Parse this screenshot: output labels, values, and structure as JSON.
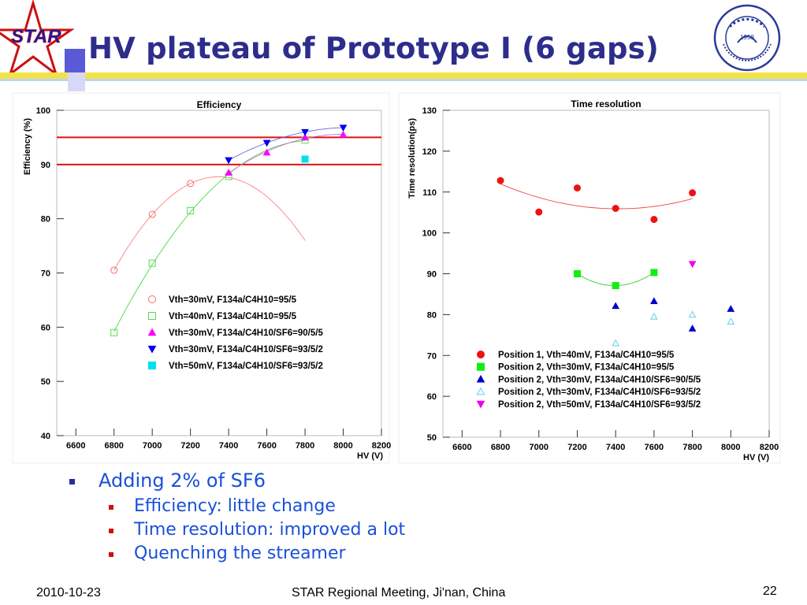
{
  "slide": {
    "title": "HV plateau of Prototype I (6 gaps)",
    "logo_text": "STAR",
    "seal_text": "1958",
    "bullets": [
      {
        "text": "Adding 2% of SF6",
        "sub": [
          {
            "text": "Efficiency: little change"
          },
          {
            "text": "Time resolution: improved a lot"
          },
          {
            "text": "Quenching the streamer"
          }
        ]
      }
    ],
    "footer": {
      "date": "2010-10-23",
      "center": "STAR Regional Meeting, Ji'nan, China",
      "page": "22"
    }
  },
  "chart_data": [
    {
      "type": "scatter",
      "title": "Efficiency",
      "xlabel": "HV (V)",
      "ylabel": "Efficiency (%)",
      "xlim": [
        6500,
        8200
      ],
      "ylim": [
        40,
        100
      ],
      "xticks": [
        6600,
        6800,
        7000,
        7200,
        7400,
        7600,
        7800,
        8000,
        8200
      ],
      "yticks": [
        40,
        50,
        60,
        70,
        80,
        90,
        100
      ],
      "grid": false,
      "legend": "inside-lower-center",
      "reference_lines": [
        95,
        90
      ],
      "series": [
        {
          "name": "Vth=30mV, F134a/C4H10=95/5",
          "marker": "circle-open",
          "color": "#ff6666",
          "x": [
            6800,
            7000,
            7200
          ],
          "y": [
            70.5,
            80.8,
            86.5
          ]
        },
        {
          "name": "Vth=40mV, F134a/C4H10=95/5",
          "marker": "square-open",
          "color": "#55dd55",
          "x": [
            6800,
            7000,
            7200,
            7400,
            7800
          ],
          "y": [
            59,
            71.8,
            81.5,
            87.8,
            94.5
          ]
        },
        {
          "name": "Vth=30mV, F134a/C4H10/SF6=90/5/5",
          "marker": "triangle-up",
          "color": "#ff00ff",
          "x": [
            7400,
            7600,
            7800,
            8000
          ],
          "y": [
            88.5,
            92.2,
            95,
            95.5
          ]
        },
        {
          "name": "Vth=30mV, F134a/C4H10/SF6=93/5/2",
          "marker": "triangle-down",
          "color": "#0000ee",
          "x": [
            7400,
            7600,
            7800,
            8000
          ],
          "y": [
            90.8,
            94,
            96,
            96.8
          ]
        },
        {
          "name": "Vth=50mV, F134a/C4H10/SF6=93/5/2",
          "marker": "square",
          "color": "#00e0f0",
          "x": [
            7800
          ],
          "y": [
            91
          ]
        }
      ]
    },
    {
      "type": "scatter",
      "title": "Time resolution",
      "xlabel": "HV (V)",
      "ylabel": "Time resolution(ps)",
      "xlim": [
        6500,
        8200
      ],
      "ylim": [
        50,
        130
      ],
      "xticks": [
        6600,
        6800,
        7000,
        7200,
        7400,
        7600,
        7800,
        8000,
        8200
      ],
      "yticks": [
        50,
        60,
        70,
        80,
        90,
        100,
        110,
        120,
        130
      ],
      "grid": false,
      "legend": "inside-lower-center",
      "series": [
        {
          "name": "Position 1, Vth=40mV, F134a/C4H10=95/5",
          "marker": "circle",
          "color": "#ee1111",
          "x": [
            6800,
            7000,
            7200,
            7400,
            7600,
            7800
          ],
          "y": [
            112.8,
            105.1,
            111,
            106,
            103.3,
            109.8
          ]
        },
        {
          "name": "Position 2, Vth=30mV, F134a/C4H10=95/5",
          "marker": "square",
          "color": "#11ee11",
          "x": [
            7200,
            7400,
            7600
          ],
          "y": [
            90,
            87.1,
            90.3
          ]
        },
        {
          "name": "Position 2, Vth=30mV, F134a/C4H10/SF6=90/5/5",
          "marker": "triangle-up",
          "color": "#0000cc",
          "x": [
            7400,
            7600,
            7800,
            8000
          ],
          "y": [
            82.1,
            83.3,
            76.6,
            81.4
          ]
        },
        {
          "name": "Position 2, Vth=30mV, F134a/C4H10/SF6=93/5/2",
          "marker": "triangle-up-open",
          "color": "#66ccee",
          "x": [
            7400,
            7600,
            7800,
            8000
          ],
          "y": [
            73,
            79.5,
            80,
            78.3
          ]
        },
        {
          "name": "Position 2, Vth=50mV, F134a/C4H10/SF6=93/5/2",
          "marker": "triangle-down",
          "color": "#ee00ee",
          "x": [
            7800
          ],
          "y": [
            92.4
          ]
        }
      ]
    }
  ]
}
